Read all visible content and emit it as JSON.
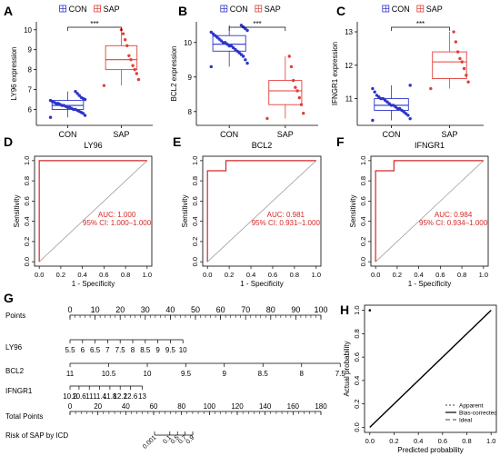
{
  "colors": {
    "con": "#2b35c9",
    "sap": "#e0403a",
    "roc": "#d62728",
    "diag": "#a0a0a0",
    "axis": "#000000"
  },
  "legend": {
    "con": "CON",
    "sap": "SAP"
  },
  "sig_label": "***",
  "chart_data": [
    {
      "panel": "A",
      "type": "box",
      "ylabel": "LY96 expression",
      "categories": [
        "CON",
        "SAP"
      ],
      "ylim": [
        5.2,
        10.4
      ],
      "yticks": [
        6,
        7,
        8,
        9,
        10
      ],
      "box": [
        {
          "name": "CON",
          "q1": 6.0,
          "median": 6.2,
          "q3": 6.45,
          "whisker_low": 5.6,
          "whisker_high": 6.9
        },
        {
          "name": "SAP",
          "q1": 8.0,
          "median": 8.5,
          "q3": 9.2,
          "whisker_low": 7.2,
          "whisker_high": 10.0
        }
      ],
      "points": {
        "CON": [
          5.6,
          5.7,
          5.8,
          5.85,
          5.9,
          5.95,
          6.0,
          6.0,
          6.05,
          6.1,
          6.1,
          6.15,
          6.2,
          6.2,
          6.25,
          6.3,
          6.3,
          6.35,
          6.4,
          6.45,
          6.5,
          6.55,
          6.6,
          6.7,
          6.8,
          6.9
        ],
        "SAP": [
          7.2,
          7.5,
          7.8,
          8.0,
          8.2,
          8.5,
          8.7,
          9.2,
          9.5,
          9.8,
          10.0
        ]
      }
    },
    {
      "panel": "B",
      "type": "box",
      "ylabel": "BCL2 expression",
      "categories": [
        "CON",
        "SAP"
      ],
      "ylim": [
        7.6,
        10.6
      ],
      "yticks": [
        8,
        9,
        10
      ],
      "box": [
        {
          "name": "CON",
          "q1": 9.75,
          "median": 9.95,
          "q3": 10.2,
          "whisker_low": 9.3,
          "whisker_high": 10.5
        },
        {
          "name": "SAP",
          "q1": 8.2,
          "median": 8.6,
          "q3": 8.9,
          "whisker_low": 7.8,
          "whisker_high": 9.6
        }
      ],
      "points": {
        "CON": [
          9.3,
          9.4,
          9.5,
          9.6,
          9.65,
          9.7,
          9.75,
          9.8,
          9.85,
          9.9,
          9.9,
          9.95,
          10.0,
          10.0,
          10.05,
          10.1,
          10.15,
          10.2,
          10.25,
          10.3,
          10.35,
          10.4,
          10.45,
          10.5
        ],
        "SAP": [
          7.8,
          7.95,
          8.2,
          8.4,
          8.6,
          8.7,
          8.9,
          9.3,
          9.6
        ]
      }
    },
    {
      "panel": "C",
      "type": "box",
      "ylabel": "IFNGR1 expression",
      "categories": [
        "CON",
        "SAP"
      ],
      "ylim": [
        10.2,
        13.3
      ],
      "yticks": [
        11,
        12,
        13
      ],
      "box": [
        {
          "name": "CON",
          "q1": 10.65,
          "median": 10.8,
          "q3": 11.0,
          "whisker_low": 10.35,
          "whisker_high": 11.4
        },
        {
          "name": "SAP",
          "q1": 11.6,
          "median": 12.1,
          "q3": 12.4,
          "whisker_low": 11.3,
          "whisker_high": 13.0
        }
      ],
      "points": {
        "CON": [
          10.35,
          10.4,
          10.5,
          10.55,
          10.6,
          10.65,
          10.7,
          10.7,
          10.75,
          10.8,
          10.8,
          10.85,
          10.9,
          10.95,
          11.0,
          11.0,
          11.05,
          11.1,
          11.2,
          11.3,
          11.4
        ],
        "SAP": [
          11.3,
          11.5,
          11.7,
          11.9,
          12.1,
          12.2,
          12.4,
          12.7,
          13.0
        ]
      }
    },
    {
      "panel": "D",
      "type": "line",
      "title": "LY96",
      "xlabel": "1 - Specificity",
      "ylabel": "Sensitivity",
      "xlim": [
        0,
        1
      ],
      "ylim": [
        0,
        1
      ],
      "ticks": [
        0.0,
        0.2,
        0.4,
        0.6,
        0.8,
        1.0
      ],
      "auc_text": "AUC: 1.000",
      "ci_text": "95% CI: 1.000–1.000",
      "x": [
        0,
        0,
        1
      ],
      "y": [
        0,
        1,
        1
      ]
    },
    {
      "panel": "E",
      "type": "line",
      "title": "BCL2",
      "xlabel": "1 - Specificity",
      "ylabel": "Sensitivity",
      "xlim": [
        0,
        1
      ],
      "ylim": [
        0,
        1
      ],
      "ticks": [
        0.0,
        0.2,
        0.4,
        0.6,
        0.8,
        1.0
      ],
      "auc_text": "AUC: 0.981",
      "ci_text": "95% CI: 0.931–1.000",
      "x": [
        0,
        0,
        0.17,
        0.17,
        1
      ],
      "y": [
        0,
        0.9,
        0.9,
        1,
        1
      ]
    },
    {
      "panel": "F",
      "type": "line",
      "title": "IFNGR1",
      "xlabel": "1 - Specificity",
      "ylabel": "Sensitivity",
      "xlim": [
        0,
        1
      ],
      "ylim": [
        0,
        1
      ],
      "ticks": [
        0.0,
        0.2,
        0.4,
        0.6,
        0.8,
        1.0
      ],
      "auc_text": "AUC: 0.984",
      "ci_text": "95% CI: 0.934–1.000",
      "x": [
        0,
        0,
        0.17,
        0.17,
        1
      ],
      "y": [
        0,
        0.9,
        0.9,
        1,
        1
      ]
    },
    {
      "panel": "G",
      "type": "table",
      "rows": [
        {
          "label": "Points",
          "ticks": [
            {
              "v": 0,
              "t": "0"
            },
            {
              "v": 10,
              "t": "10"
            },
            {
              "v": 20,
              "t": "20"
            },
            {
              "v": 30,
              "t": "30"
            },
            {
              "v": 40,
              "t": "40"
            },
            {
              "v": 50,
              "t": "50"
            },
            {
              "v": 60,
              "t": "60"
            },
            {
              "v": 70,
              "t": "70"
            },
            {
              "v": 80,
              "t": "80"
            },
            {
              "v": 90,
              "t": "90"
            },
            {
              "v": 100,
              "t": "100"
            }
          ],
          "minor": 2
        },
        {
          "label": "LY96",
          "ticks": [
            {
              "v": 0,
              "t": "5.5"
            },
            {
              "v": 5,
              "t": "6"
            },
            {
              "v": 10,
              "t": "6.5"
            },
            {
              "v": 15,
              "t": "7"
            },
            {
              "v": 20,
              "t": "7.5"
            },
            {
              "v": 25,
              "t": "8"
            },
            {
              "v": 30,
              "t": "8.5"
            },
            {
              "v": 35,
              "t": "9"
            },
            {
              "v": 40,
              "t": "9.5"
            },
            {
              "v": 45,
              "t": "10"
            }
          ]
        },
        {
          "label": "BCL2",
          "ticks": [
            {
              "v": 0,
              "t": "11"
            },
            {
              "v": 15.4,
              "t": "10.5"
            },
            {
              "v": 30.8,
              "t": "10"
            },
            {
              "v": 46.2,
              "t": "9.5"
            },
            {
              "v": 61.5,
              "t": "9"
            },
            {
              "v": 76.9,
              "t": "8.5"
            },
            {
              "v": 92.3,
              "t": "8"
            },
            {
              "v": 107.7,
              "t": "7.5"
            }
          ]
        },
        {
          "label": "IFNGR1",
          "ticks": [
            {
              "v": 0,
              "t": "10.2"
            },
            {
              "v": 3.6,
              "t": "10.6"
            },
            {
              "v": 7.7,
              "t": "11"
            },
            {
              "v": 11.8,
              "t": "11.4"
            },
            {
              "v": 15.9,
              "t": "11.8"
            },
            {
              "v": 20,
              "t": "12.2"
            },
            {
              "v": 24.1,
              "t": "12.6"
            },
            {
              "v": 28.8,
              "t": "13"
            }
          ]
        },
        {
          "label": "Total Points",
          "ticks": [
            {
              "v": 0,
              "t": "0"
            },
            {
              "v": 20,
              "t": "20"
            },
            {
              "v": 40,
              "t": "40"
            },
            {
              "v": 60,
              "t": "60"
            },
            {
              "v": 80,
              "t": "80"
            },
            {
              "v": 100,
              "t": "100"
            },
            {
              "v": 120,
              "t": "120"
            },
            {
              "v": 140,
              "t": "140"
            },
            {
              "v": 160,
              "t": "160"
            },
            {
              "v": 180,
              "t": "180"
            }
          ],
          "minor": 4
        },
        {
          "label": "Risk of SAP by ICD",
          "ticks": [
            {
              "v": 0.365,
              "t": "0.001"
            },
            {
              "v": 0.385,
              "t": "0.1"
            },
            {
              "v": 0.395,
              "t": "0.5"
            },
            {
              "v": 0.405,
              "t": "0.7"
            },
            {
              "v": 0.415,
              "t": "0.9"
            }
          ]
        }
      ]
    },
    {
      "panel": "H",
      "type": "line",
      "xlabel": "Predicted probability",
      "ylabel": "Actual probability",
      "xlim": [
        0,
        1
      ],
      "ylim": [
        0,
        1
      ],
      "ticks": [
        0.0,
        0.2,
        0.4,
        0.6,
        0.8,
        1.0
      ],
      "legend": [
        "Apparent",
        "Bias-corrected",
        "Ideal"
      ],
      "legend_position": "bottom-right",
      "series": [
        {
          "name": "Apparent",
          "x": [
            0,
            1
          ],
          "y": [
            0,
            1
          ]
        },
        {
          "name": "Bias-corrected",
          "x": [
            0,
            1
          ],
          "y": [
            0,
            1
          ]
        },
        {
          "name": "Ideal",
          "x": [
            0,
            1
          ],
          "y": [
            0,
            1
          ]
        }
      ]
    }
  ]
}
